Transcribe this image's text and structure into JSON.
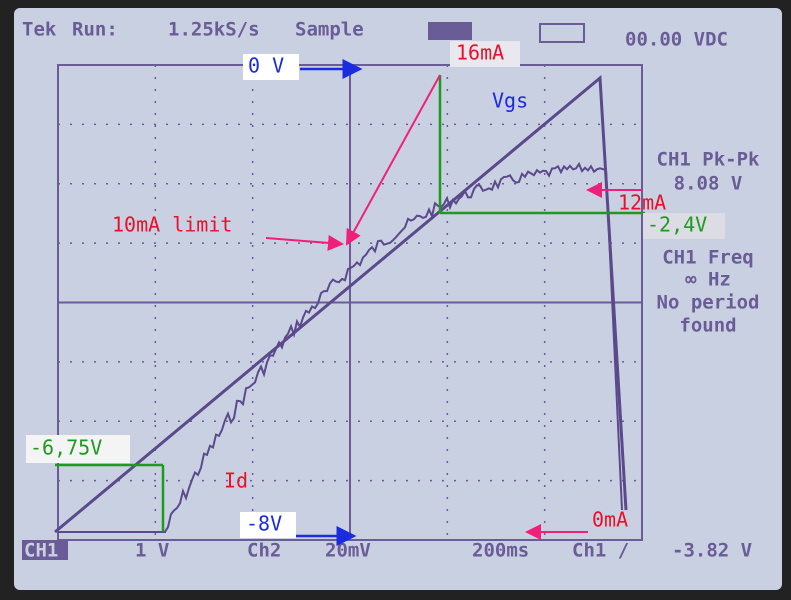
{
  "header": {
    "brand": "Tek",
    "status": "Run:",
    "rate": "1.25kS/s",
    "mode": "Sample",
    "readout": "00.00 VDC"
  },
  "right_panel": {
    "meas1_label": "CH1 Pk-Pk",
    "meas1_value": "8.08 V",
    "meas2_label": "CH1 Freq",
    "meas2_value": "∞ Hz",
    "meas2_note1": "No period",
    "meas2_note2": "found"
  },
  "bottom_bar": {
    "ch1": "CH1",
    "ch1_scale": "1 V",
    "ch2": "Ch2",
    "ch2_scale": "20mV",
    "timebase": "200ms",
    "trigger": "Ch1 /",
    "trigger_level": "-3.82 V"
  },
  "annotations": {
    "zero_v": "0 V",
    "max_current": "16mA",
    "vgs": "Vgs",
    "current_12": "12mA",
    "voltage_24": "-2,4V",
    "limit": "10mA limit",
    "voltage_675": "-6,75V",
    "id": "Id",
    "minus_8v": "-8V",
    "zero_ma": "0mA"
  }
}
